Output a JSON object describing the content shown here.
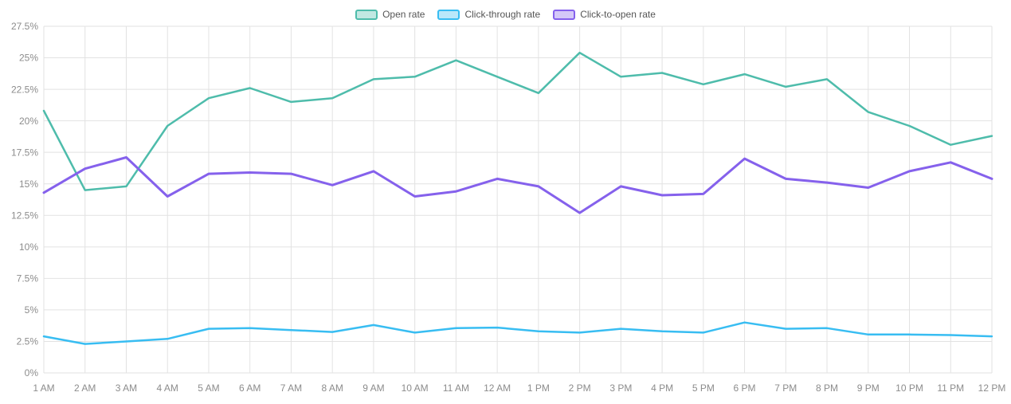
{
  "chart_data": {
    "type": "line",
    "x": [
      "1 AM",
      "2 AM",
      "3 AM",
      "4 AM",
      "5 AM",
      "6 AM",
      "7 AM",
      "8 AM",
      "9 AM",
      "10 AM",
      "11 AM",
      "12 AM",
      "1 PM",
      "2 PM",
      "3 PM",
      "4 PM",
      "5 PM",
      "6 PM",
      "7 PM",
      "8 PM",
      "9 PM",
      "10 PM",
      "11 PM",
      "12 PM"
    ],
    "series": [
      {
        "name": "Open rate",
        "color": "#4ebcab",
        "values": [
          20.8,
          14.5,
          14.8,
          19.6,
          21.8,
          22.6,
          21.5,
          21.8,
          23.3,
          23.5,
          24.8,
          23.5,
          22.2,
          25.4,
          23.5,
          23.8,
          22.9,
          23.7,
          22.7,
          23.3,
          20.7,
          19.6,
          18.1,
          18.8
        ]
      },
      {
        "name": "Click-through rate",
        "color": "#38bdf2",
        "values": [
          2.9,
          2.3,
          2.5,
          2.7,
          3.5,
          3.55,
          3.4,
          3.25,
          3.8,
          3.2,
          3.55,
          3.6,
          3.3,
          3.2,
          3.5,
          3.3,
          3.2,
          4.0,
          3.5,
          3.55,
          3.05,
          3.05,
          3.0,
          2.9
        ]
      },
      {
        "name": "Click-to-open rate",
        "color": "#8561ec",
        "values": [
          14.3,
          16.2,
          17.1,
          14.0,
          15.8,
          15.9,
          15.8,
          14.9,
          16.0,
          14.0,
          14.4,
          15.4,
          14.8,
          12.7,
          14.8,
          14.1,
          14.2,
          17.0,
          15.4,
          15.1,
          14.7,
          16.0,
          16.7,
          15.4
        ]
      }
    ],
    "y_ticks": [
      "0%",
      "2.5%",
      "5%",
      "7.5%",
      "10%",
      "12.5%",
      "15%",
      "17.5%",
      "20%",
      "22.5%",
      "25%",
      "27.5%"
    ],
    "ylim": [
      0,
      27.5
    ],
    "y_tick_step": 2.5,
    "grid": true,
    "legend_position": "top",
    "grid_color": "#e2e2e2",
    "tick_label_color": "#8c8c8c"
  }
}
